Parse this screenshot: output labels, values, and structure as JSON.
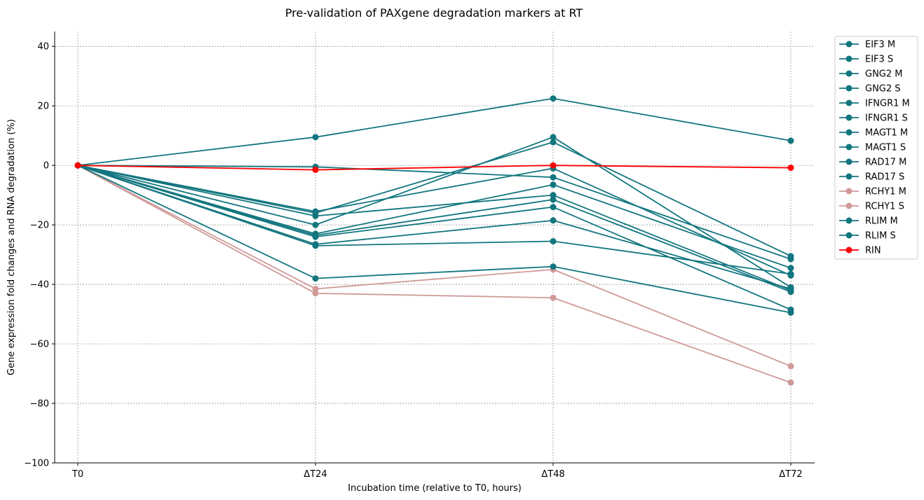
{
  "chart_data": {
    "type": "line",
    "title": "Pre-validation of PAXgene degradation markers at RT",
    "xlabel": "Incubation time (relative to T0, hours)",
    "ylabel": "Gene expression fold changes and RNA degradation (%)",
    "categories": [
      "T0",
      "ΔT24",
      "ΔT48",
      "ΔT72"
    ],
    "ylim": [
      -100,
      45
    ],
    "yticks": [
      -100,
      -80,
      -60,
      -40,
      -20,
      0,
      20,
      40
    ],
    "ytick_labels": [
      "−100",
      "−80",
      "−60",
      "−40",
      "−20",
      "0",
      "20",
      "40"
    ],
    "grid": true,
    "legend_position": "outside-right",
    "series": [
      {
        "name": "EIF3 M",
        "color": "#12767f",
        "values": [
          0,
          9.5,
          22.5,
          8.3
        ]
      },
      {
        "name": "EIF3 S",
        "color": "#12767f",
        "values": [
          0,
          -0.5,
          -4,
          -31.5
        ]
      },
      {
        "name": "GNG2 M",
        "color": "#12767f",
        "values": [
          0,
          -16,
          7.8,
          -30.5
        ]
      },
      {
        "name": "GNG2 S",
        "color": "#12767f",
        "values": [
          0,
          -20,
          9.5,
          -41
        ]
      },
      {
        "name": "IFNGR1 M",
        "color": "#12767f",
        "values": [
          0,
          -15.5,
          -1,
          -37
        ]
      },
      {
        "name": "IFNGR1 S",
        "color": "#12767f",
        "values": [
          0,
          -17,
          -10,
          -42
        ]
      },
      {
        "name": "MAGT1 M",
        "color": "#12767f",
        "values": [
          0,
          -23,
          -6.5,
          -34.5
        ]
      },
      {
        "name": "MAGT1 S",
        "color": "#12767f",
        "values": [
          0,
          -24,
          -14,
          -48.5
        ]
      },
      {
        "name": "RAD17 M",
        "color": "#12767f",
        "values": [
          0,
          -26.5,
          -18.5,
          -41.5
        ]
      },
      {
        "name": "RAD17 S",
        "color": "#12767f",
        "values": [
          0,
          -27,
          -25.5,
          -36.5
        ]
      },
      {
        "name": "RCHY1 M",
        "color": "#cf9a98",
        "values": [
          0,
          -41.5,
          -35,
          -67.5
        ]
      },
      {
        "name": "RCHY1 S",
        "color": "#cf9a98",
        "values": [
          0,
          -43,
          -44.5,
          -73
        ]
      },
      {
        "name": "RLIM M",
        "color": "#12767f",
        "values": [
          0,
          -38,
          -34,
          -49.5
        ]
      },
      {
        "name": "RLIM S",
        "color": "#12767f",
        "values": [
          0,
          -23.5,
          -11.5,
          -42.5
        ]
      },
      {
        "name": "RIN",
        "color": "#ff0000",
        "values": [
          0,
          -1.5,
          0,
          -0.8
        ]
      }
    ]
  }
}
